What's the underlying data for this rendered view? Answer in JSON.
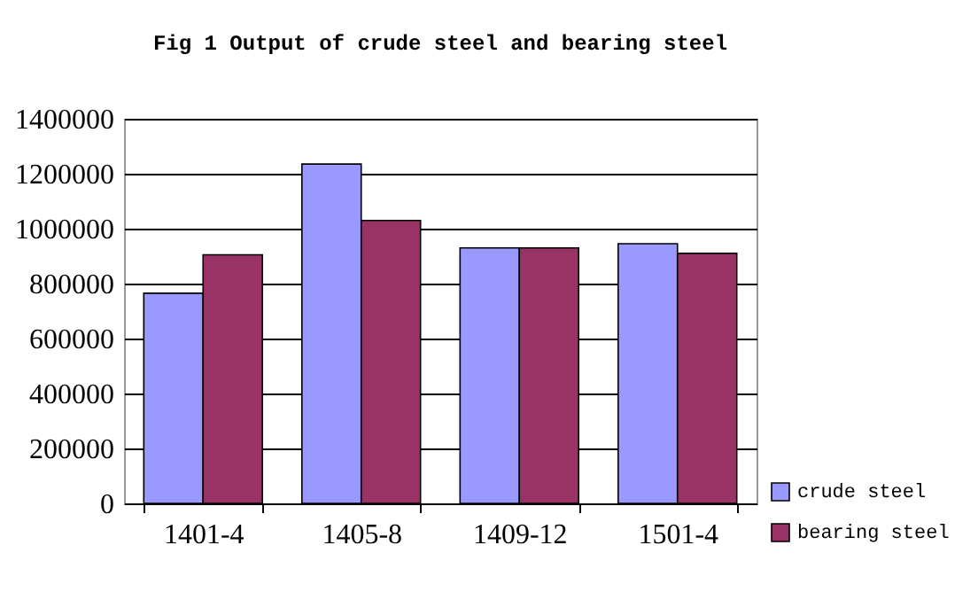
{
  "chart_data": {
    "type": "bar",
    "title": "Fig 1 Output of crude steel and bearing steel",
    "categories": [
      "1401-4",
      "1405-8",
      "1409-12",
      "1501-4"
    ],
    "series": [
      {
        "name": "crude steel",
        "color": "#9999ff",
        "values": [
          765000,
          1235000,
          930000,
          945000
        ]
      },
      {
        "name": "bearing steel",
        "color": "#993366",
        "values": [
          905000,
          1030000,
          930000,
          910000
        ]
      }
    ],
    "ylim": [
      0,
      1400000
    ],
    "yticks": [
      0,
      200000,
      400000,
      600000,
      800000,
      1000000,
      1200000,
      1400000
    ],
    "grid": "y",
    "legend": "bottom right"
  }
}
